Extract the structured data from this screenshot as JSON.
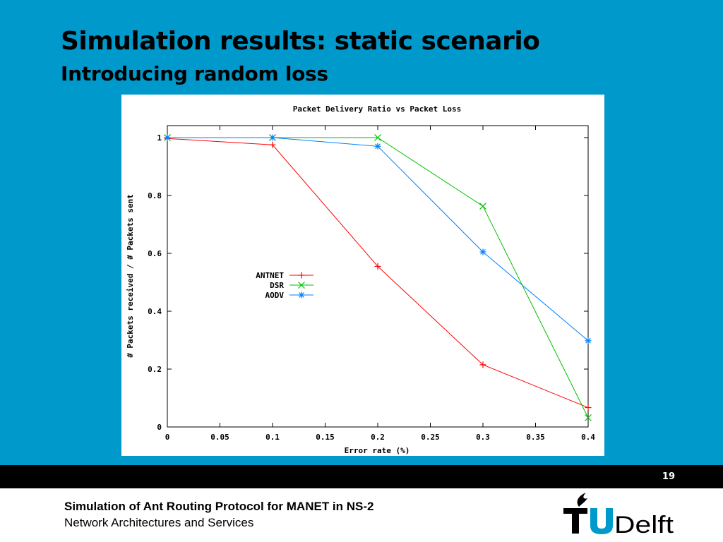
{
  "slide": {
    "title": "Simulation results: static scenario",
    "subtitle": "Introducing random loss",
    "page_number": "19"
  },
  "footer": {
    "line1": "Simulation of Ant Routing Protocol for MANET in NS-2",
    "line2": "Network Architectures and Services",
    "logo_text": "TUDelft"
  },
  "colors": {
    "background": "#0099cc",
    "antnet": "#ff0000",
    "dsr": "#00c000",
    "aodv": "#0080ff"
  },
  "chart_data": {
    "type": "line",
    "title": "Packet Delivery Ratio vs Packet Loss",
    "xlabel": "Error rate (%)",
    "ylabel": "# Packets received / # Packets sent",
    "xlim": [
      0,
      0.4
    ],
    "ylim": [
      0,
      1.05
    ],
    "x_ticks": [
      "0",
      "0.05",
      "0.1",
      "0.15",
      "0.2",
      "0.25",
      "0.3",
      "0.35",
      "0.4"
    ],
    "y_ticks": [
      "0",
      "0.2",
      "0.4",
      "0.6",
      "0.8",
      "1"
    ],
    "grid": false,
    "legend_position": "center-left",
    "series": [
      {
        "name": "ANTNET",
        "marker": "plus",
        "x": [
          0,
          0.1,
          0.2,
          0.3,
          0.4
        ],
        "values": [
          0.997,
          0.975,
          0.555,
          0.215,
          0.067
        ]
      },
      {
        "name": "DSR",
        "marker": "cross",
        "x": [
          0,
          0.1,
          0.2,
          0.3,
          0.4
        ],
        "values": [
          1.0,
          1.0,
          1.0,
          0.763,
          0.032
        ]
      },
      {
        "name": "AODV",
        "marker": "star",
        "x": [
          0,
          0.1,
          0.2,
          0.3,
          0.4
        ],
        "values": [
          1.0,
          1.0,
          0.97,
          0.605,
          0.298
        ]
      }
    ]
  }
}
